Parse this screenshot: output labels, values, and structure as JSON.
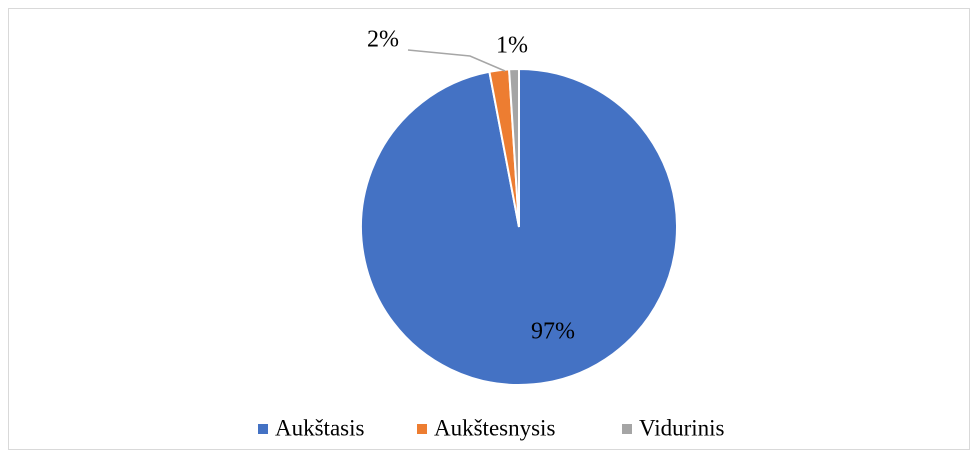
{
  "chart_data": {
    "type": "pie",
    "categories": [
      "Aukštasis",
      "Aukštesnysis",
      "Vidurinis"
    ],
    "values": [
      97,
      2,
      1
    ],
    "value_labels": [
      "97%",
      "2%",
      "1%"
    ],
    "colors": [
      "#4472c4",
      "#ed7d31",
      "#a5a5a5"
    ],
    "legend": "bottom"
  }
}
